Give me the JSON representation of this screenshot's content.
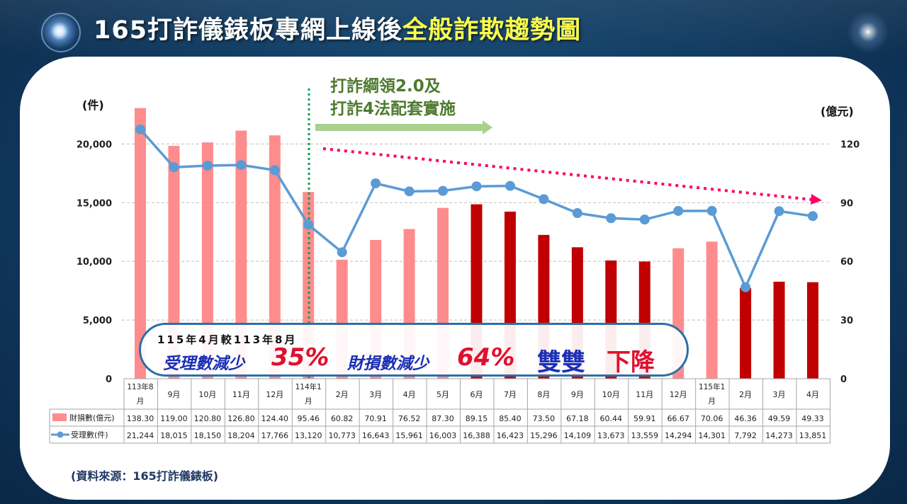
{
  "title": {
    "prefix": "165打詐儀錶板專網上線後",
    "highlight": "全般詐欺趨勢圖"
  },
  "units": {
    "left": "(件)",
    "right": "(億元)"
  },
  "annotation": {
    "line1": "打詐綱領2.0及",
    "line2": "打詐4法配套實施"
  },
  "callout": {
    "subtitle": "115年4月較113年8月",
    "part1": "受理數減少",
    "part1_value": "35%",
    "part2": "財損數減少",
    "part2_value": "64%",
    "part3": "雙雙",
    "part3_highlight": "下降"
  },
  "source": "(資料來源：165打詐儀錶板)",
  "colors": {
    "bar_light": "#ff8c8c",
    "bar_dark": "#c00000",
    "line": "#5b9bd5",
    "trend_arrow": "#ff0066",
    "policy_line": "#00a050",
    "policy_arrow": "#a9d18e"
  },
  "chart_data": {
    "type": "bar",
    "categories": [
      "113年8月",
      "9月",
      "10月",
      "11月",
      "12月",
      "114年1月",
      "2月",
      "3月",
      "4月",
      "5月",
      "6月",
      "7月",
      "8月",
      "9月",
      "10月",
      "11月",
      "12月",
      "115年1月",
      "2月",
      "3月",
      "4月"
    ],
    "series": [
      {
        "name": "財損數(億元)",
        "type": "bar",
        "axis": "right",
        "values": [
          138.3,
          119.0,
          120.8,
          126.8,
          124.4,
          95.46,
          60.82,
          70.91,
          76.52,
          87.3,
          89.15,
          85.4,
          73.5,
          67.18,
          60.44,
          59.91,
          66.67,
          70.06,
          46.36,
          49.59,
          49.33
        ],
        "display": [
          "138.30",
          "119.00",
          "120.80",
          "126.80",
          "124.40",
          "95.46",
          "60.82",
          "70.91",
          "76.52",
          "87.30",
          "89.15",
          "85.40",
          "73.50",
          "67.18",
          "60.44",
          "59.91",
          "66.67",
          "70.06",
          "46.36",
          "49.59",
          "49.33"
        ],
        "dark": [
          false,
          false,
          false,
          false,
          false,
          false,
          false,
          false,
          false,
          false,
          true,
          true,
          true,
          true,
          true,
          true,
          false,
          false,
          true,
          true,
          true
        ]
      },
      {
        "name": "受理數(件)",
        "type": "line",
        "axis": "left",
        "values": [
          21244,
          18015,
          18150,
          18204,
          17766,
          13120,
          10773,
          16643,
          15961,
          16003,
          16388,
          16423,
          15296,
          14109,
          13673,
          13559,
          14294,
          14301,
          7792,
          14273,
          13851
        ],
        "display": [
          "21,244",
          "18,015",
          "18,150",
          "18,204",
          "17,766",
          "13,120",
          "10,773",
          "16,643",
          "15,961",
          "16,003",
          "16,388",
          "16,423",
          "15,296",
          "14,109",
          "13,673",
          "13,559",
          "14,294",
          "14,301",
          "7,792",
          "14,273",
          "13,851"
        ]
      }
    ],
    "y_left": {
      "min": 0,
      "max": 24000,
      "ticks": [
        0,
        5000,
        10000,
        15000,
        20000
      ],
      "tick_labels": [
        "0",
        "5,000",
        "10,000",
        "15,000",
        "20,000"
      ]
    },
    "y_right": {
      "min": 0,
      "max": 144,
      "ticks": [
        0,
        30,
        60,
        90,
        120
      ],
      "tick_labels": [
        "0",
        "30",
        "60",
        "90",
        "120"
      ]
    },
    "grid": true,
    "legend": "table-left"
  }
}
